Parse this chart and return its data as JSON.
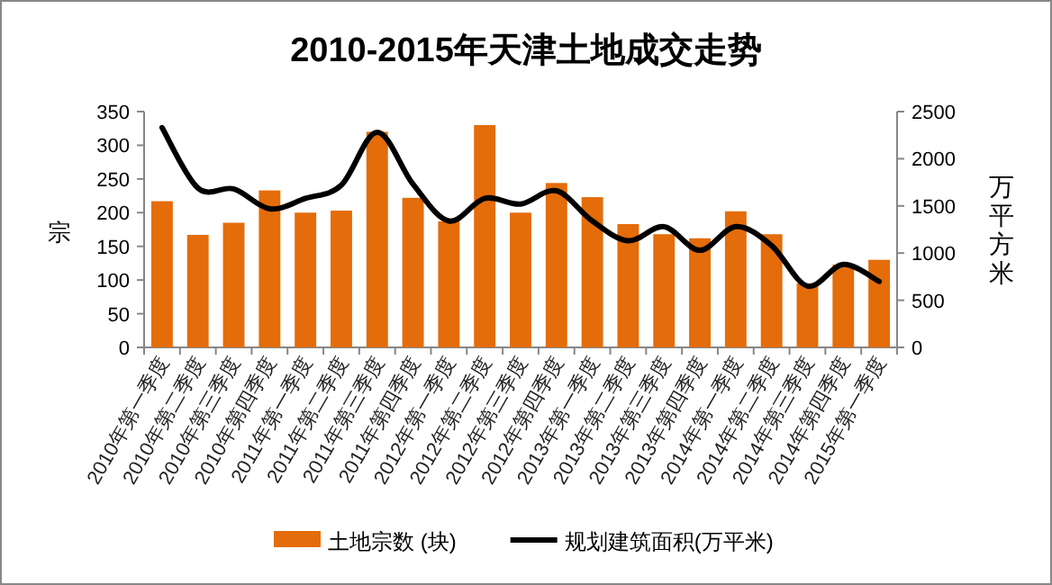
{
  "chart_data": {
    "type": "bar",
    "title": "2010-2015年天津土地成交走势",
    "categories": [
      "2010年第一季度",
      "2010年第二季度",
      "2010年第三季度",
      "2010年第四季度",
      "2011年第一季度",
      "2011年第二季度",
      "2011年第三季度",
      "2011年第四季度",
      "2012年第一季度",
      "2012年第二季度",
      "2012年第三季度",
      "2012年第四季度",
      "2013年第一季度",
      "2013年第二季度",
      "2013年第三季度",
      "2013年第四季度",
      "2014年第一季度",
      "2014年第二季度",
      "2014年第三季度",
      "2014年第四季度",
      "2015年第一季度"
    ],
    "series": [
      {
        "name": "土地宗数 (块)",
        "color": "#e46c0a",
        "values": [
          217,
          167,
          185,
          233,
          200,
          203,
          320,
          222,
          187,
          330,
          200,
          244,
          223,
          183,
          168,
          162,
          202,
          168,
          95,
          123,
          130
        ]
      },
      {
        "name": "规划建筑面积(万平米)",
        "type": "line",
        "axis": "y2",
        "color": "#000000",
        "values": [
          2330,
          1690,
          1680,
          1470,
          1580,
          1720,
          2280,
          1730,
          1340,
          1580,
          1520,
          1660,
          1340,
          1130,
          1280,
          1030,
          1280,
          1080,
          650,
          880,
          700
        ]
      }
    ],
    "ylabel": "宗",
    "y2label": "万平方米",
    "ylim": [
      0,
      350
    ],
    "yticks": [
      0,
      50,
      100,
      150,
      200,
      250,
      300,
      350
    ],
    "y2lim": [
      0,
      2500
    ],
    "y2ticks": [
      0,
      500,
      1000,
      1500,
      2000,
      2500
    ],
    "legend": "bottom",
    "grid": false
  }
}
